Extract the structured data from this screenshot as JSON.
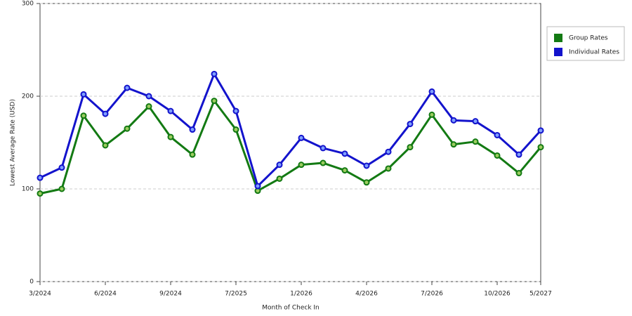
{
  "chart_data": {
    "type": "line",
    "y_label": "Lowest Average Rate (USD)",
    "x_label": "Month of Check In",
    "categories": [
      "3/2024",
      null,
      null,
      "6/2024",
      null,
      null,
      "9/2024",
      null,
      null,
      "7/2025",
      null,
      null,
      "1/2026",
      null,
      null,
      "4/2026",
      null,
      null,
      "7/2026",
      null,
      null,
      "10/2026",
      null,
      "5/2027"
    ],
    "series": [
      {
        "name": "Group Rates",
        "color": "#137a13",
        "values": [
          95,
          100,
          179,
          147,
          165,
          189,
          156,
          137,
          195,
          164,
          98,
          111,
          126,
          128,
          120,
          107,
          122,
          145,
          180,
          148,
          151,
          136,
          117,
          145
        ]
      },
      {
        "name": "Individual Rates",
        "color": "#1313cc",
        "values": [
          112,
          123,
          202,
          181,
          209,
          200,
          184,
          164,
          224,
          184,
          103,
          126,
          155,
          144,
          138,
          125,
          140,
          170,
          205,
          174,
          173,
          158,
          137,
          163
        ]
      }
    ],
    "ylim": [
      0,
      300
    ],
    "yticks": [
      0,
      100,
      200,
      300
    ],
    "grid": true,
    "legend": "right"
  }
}
